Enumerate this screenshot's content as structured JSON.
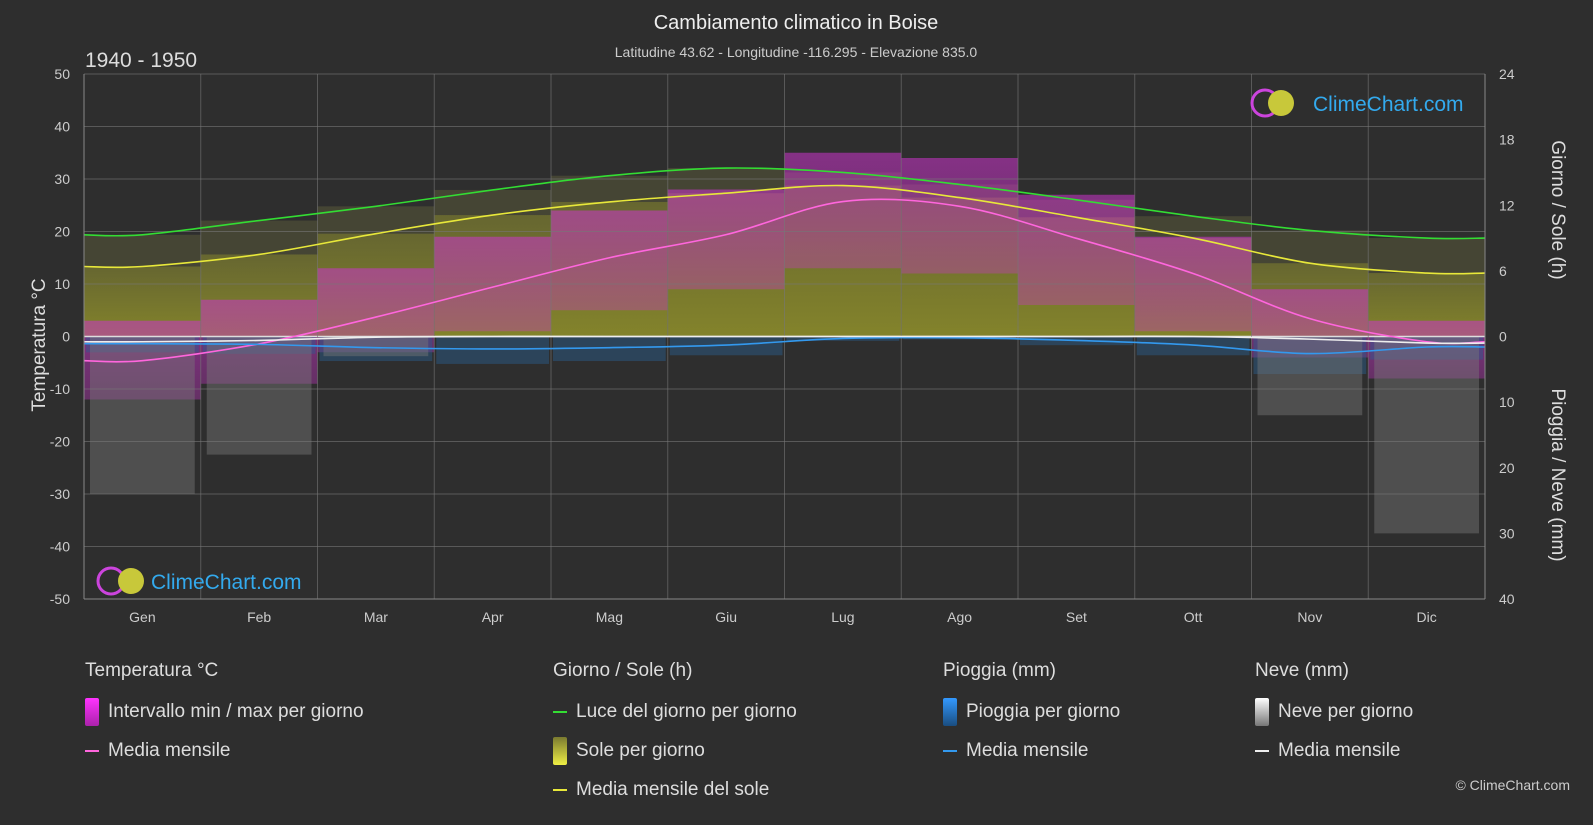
{
  "chart_data": {
    "type": "line",
    "title": "Cambiamento climatico in Boise",
    "subtitle": "Latitudine 43.62 - Longitudine -116.295 - Elevazione 835.0",
    "period": "1940 - 1950",
    "y_left_label": "Temperatura °C",
    "y_right_top_label": "Giorno / Sole (h)",
    "y_right_bottom_label": "Pioggia / Neve (mm)",
    "y_left_ticks": [
      50,
      40,
      30,
      20,
      10,
      0,
      -10,
      -20,
      -30,
      -40,
      -50
    ],
    "y_right_top_ticks": [
      24,
      18,
      12,
      6,
      0
    ],
    "y_right_bottom_ticks": [
      0,
      10,
      20,
      30,
      40
    ],
    "ylim_temp": [
      -50,
      50
    ],
    "ylim_hours": [
      0,
      24
    ],
    "ylim_precip_mm": [
      0,
      40
    ],
    "categories": [
      "Gen",
      "Feb",
      "Mar",
      "Apr",
      "Mag",
      "Giu",
      "Lug",
      "Ago",
      "Set",
      "Ott",
      "Nov",
      "Dic"
    ],
    "grid": true,
    "series": [
      {
        "name": "Luce del giorno per giorno",
        "axis": "hours",
        "color": "#33dd33",
        "values": [
          9.3,
          10.6,
          11.9,
          13.4,
          14.7,
          15.4,
          15.0,
          13.9,
          12.5,
          11.0,
          9.7,
          9.0
        ]
      },
      {
        "name": "Media mensile del sole",
        "axis": "hours",
        "color": "#e8e83a",
        "values": [
          6.4,
          7.5,
          9.4,
          11.1,
          12.3,
          13.1,
          13.8,
          12.7,
          10.9,
          9.0,
          6.7,
          5.8
        ]
      },
      {
        "name": "Media mensile",
        "group": "Temperatura °C",
        "axis": "temp",
        "color": "#ff66dd",
        "values": [
          -4.6,
          -1.4,
          3.7,
          9.4,
          15.0,
          19.4,
          25.7,
          24.8,
          18.7,
          12.0,
          3.4,
          -1.0
        ]
      },
      {
        "name": "Media mensile",
        "group": "Pioggia (mm)",
        "axis": "precip",
        "color": "#3399ee",
        "values": [
          1.1,
          1.2,
          1.7,
          1.9,
          1.7,
          1.3,
          0.3,
          0.2,
          0.6,
          1.3,
          2.6,
          1.6
        ]
      },
      {
        "name": "Media mensile",
        "group": "Neve (mm)",
        "axis": "precip",
        "color": "#eeeeee",
        "values": [
          0.8,
          0.6,
          0.1,
          0.0,
          0.0,
          0.0,
          0.0,
          0.0,
          0.0,
          0.0,
          0.4,
          1.0
        ]
      }
    ],
    "daily_temp_range": {
      "name": "Intervallo min / max per giorno",
      "min": [
        -12,
        -9,
        -3,
        1,
        5,
        9,
        13,
        12,
        6,
        1,
        -4,
        -8
      ],
      "max": [
        3,
        7,
        13,
        19,
        24,
        28,
        35,
        34,
        27,
        19,
        9,
        3
      ]
    }
  },
  "legend": [
    {
      "title": "Temperatura °C",
      "items": [
        {
          "label": "Intervallo min / max per giorno",
          "swatch": "box",
          "color": "#dd22dd"
        },
        {
          "label": "Media mensile",
          "swatch": "line",
          "color": "#ff66dd"
        }
      ]
    },
    {
      "title": "Giorno / Sole (h)",
      "items": [
        {
          "label": "Luce del giorno per giorno",
          "swatch": "line",
          "color": "#33dd33"
        },
        {
          "label": "Sole per giorno",
          "swatch": "box",
          "color": "#d4d43a"
        },
        {
          "label": "Media mensile del sole",
          "swatch": "line",
          "color": "#e8e83a"
        }
      ]
    },
    {
      "title": "Pioggia (mm)",
      "items": [
        {
          "label": "Pioggia per giorno",
          "swatch": "box",
          "color": "#2a7fd0"
        },
        {
          "label": "Media mensile",
          "swatch": "line",
          "color": "#3399ee"
        }
      ]
    },
    {
      "title": "Neve (mm)",
      "items": [
        {
          "label": "Neve per giorno",
          "swatch": "box",
          "color": "#cccccc"
        },
        {
          "label": "Media mensile",
          "swatch": "line",
          "color": "#eeeeee"
        }
      ]
    }
  ],
  "watermark": "ClimeChart.com",
  "copyright": "© ClimeChart.com"
}
